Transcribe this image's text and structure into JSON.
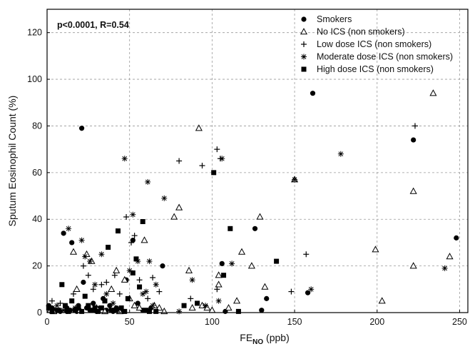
{
  "chart_data": {
    "type": "scatter",
    "annotation": "p<0.0001, R=0.54",
    "xlabel_main": "FE",
    "xlabel_sub": "NO",
    "xlabel_unit": " (ppb)",
    "ylabel": "Sputum Eosinophil Count (%)",
    "xlim": [
      0,
      255
    ],
    "ylim": [
      0,
      130
    ],
    "x_ticks": [
      0,
      50,
      100,
      150,
      200,
      250
    ],
    "y_ticks": [
      0,
      20,
      40,
      60,
      80,
      100,
      120
    ],
    "grid": true,
    "legend_position": "top-right",
    "series": [
      {
        "name": "Smokers",
        "marker": "circle",
        "points": [
          [
            1,
            3
          ],
          [
            3,
            2
          ],
          [
            5,
            1
          ],
          [
            8,
            0.5
          ],
          [
            10,
            34
          ],
          [
            12,
            2
          ],
          [
            14,
            1
          ],
          [
            15,
            30
          ],
          [
            17,
            1.5
          ],
          [
            19,
            3
          ],
          [
            21,
            79
          ],
          [
            22,
            13
          ],
          [
            24,
            2
          ],
          [
            26,
            1
          ],
          [
            28,
            4
          ],
          [
            30,
            0.5
          ],
          [
            32,
            2
          ],
          [
            34,
            6
          ],
          [
            36,
            1
          ],
          [
            38,
            3
          ],
          [
            40,
            0.5
          ],
          [
            42,
            2
          ],
          [
            44,
            1
          ],
          [
            46,
            0.5
          ],
          [
            48,
            14
          ],
          [
            52,
            31
          ],
          [
            55,
            4
          ],
          [
            58,
            1
          ],
          [
            63,
            2
          ],
          [
            70,
            20
          ],
          [
            106,
            21
          ],
          [
            108,
            0.5
          ],
          [
            126,
            36
          ],
          [
            130,
            1
          ],
          [
            133,
            6
          ],
          [
            158,
            8.5
          ],
          [
            161,
            94
          ],
          [
            222,
            74
          ],
          [
            248,
            32
          ],
          [
            5,
            0.5
          ],
          [
            12,
            0.5
          ],
          [
            18,
            0.5
          ]
        ]
      },
      {
        "name": "No ICS (non smokers)",
        "marker": "triangle",
        "points": [
          [
            2,
            1
          ],
          [
            4,
            0.5
          ],
          [
            16,
            26
          ],
          [
            18,
            10
          ],
          [
            20,
            1
          ],
          [
            24,
            25
          ],
          [
            27,
            22
          ],
          [
            30,
            2
          ],
          [
            35,
            0.5
          ],
          [
            39,
            10
          ],
          [
            42,
            18
          ],
          [
            44,
            0.5
          ],
          [
            47,
            14
          ],
          [
            50,
            6
          ],
          [
            53,
            3
          ],
          [
            56,
            2
          ],
          [
            59,
            31
          ],
          [
            65,
            3
          ],
          [
            68,
            2
          ],
          [
            71,
            0.5
          ],
          [
            77,
            41
          ],
          [
            80,
            45
          ],
          [
            86,
            18
          ],
          [
            88,
            2
          ],
          [
            92,
            79
          ],
          [
            94,
            3
          ],
          [
            97,
            2
          ],
          [
            100,
            1
          ],
          [
            104,
            12
          ],
          [
            104,
            16
          ],
          [
            110,
            2
          ],
          [
            115,
            5
          ],
          [
            118,
            26
          ],
          [
            124,
            20
          ],
          [
            129,
            41
          ],
          [
            132,
            11
          ],
          [
            150,
            57
          ],
          [
            199,
            27
          ],
          [
            203,
            5
          ],
          [
            222,
            20
          ],
          [
            222,
            52
          ],
          [
            234,
            94
          ],
          [
            244,
            24
          ]
        ]
      },
      {
        "name": "Low dose ICS (non smokers)",
        "marker": "plus",
        "points": [
          [
            3,
            5
          ],
          [
            8,
            4
          ],
          [
            16,
            8
          ],
          [
            22,
            20
          ],
          [
            25,
            16
          ],
          [
            28,
            10
          ],
          [
            33,
            12
          ],
          [
            36,
            13
          ],
          [
            41,
            16
          ],
          [
            44,
            8
          ],
          [
            48,
            41
          ],
          [
            51,
            30
          ],
          [
            53,
            33
          ],
          [
            56,
            14
          ],
          [
            61,
            6
          ],
          [
            64,
            15
          ],
          [
            68,
            9
          ],
          [
            80,
            65
          ],
          [
            87,
            6
          ],
          [
            94,
            63
          ],
          [
            103,
            10
          ],
          [
            103,
            70
          ],
          [
            105,
            66
          ],
          [
            148,
            9
          ],
          [
            157,
            25
          ],
          [
            223,
            80
          ]
        ]
      },
      {
        "name": "Moderate dose ICS (non smokers)",
        "marker": "asterisk",
        "points": [
          [
            6,
            3
          ],
          [
            10,
            1
          ],
          [
            13,
            36
          ],
          [
            17,
            2
          ],
          [
            21,
            31
          ],
          [
            23,
            24
          ],
          [
            26,
            22
          ],
          [
            29,
            12
          ],
          [
            33,
            25
          ],
          [
            36,
            8
          ],
          [
            40,
            4
          ],
          [
            43,
            1
          ],
          [
            47,
            66
          ],
          [
            50,
            18
          ],
          [
            52,
            42
          ],
          [
            55,
            22
          ],
          [
            58,
            8
          ],
          [
            60,
            9
          ],
          [
            61,
            56
          ],
          [
            62,
            22
          ],
          [
            64,
            3
          ],
          [
            66,
            12
          ],
          [
            71,
            49
          ],
          [
            80,
            0.5
          ],
          [
            88,
            14
          ],
          [
            96,
            3
          ],
          [
            104,
            5
          ],
          [
            106,
            66
          ],
          [
            112,
            21
          ],
          [
            150,
            57
          ],
          [
            160,
            10
          ],
          [
            178,
            68
          ],
          [
            241,
            19
          ]
        ]
      },
      {
        "name": "High dose ICS (non smokers)",
        "marker": "square",
        "points": [
          [
            1,
            2
          ],
          [
            3,
            0.5
          ],
          [
            7,
            1
          ],
          [
            9,
            12
          ],
          [
            11,
            3
          ],
          [
            13,
            0.5
          ],
          [
            15,
            5
          ],
          [
            17,
            1
          ],
          [
            19,
            2
          ],
          [
            21,
            0.5
          ],
          [
            23,
            7
          ],
          [
            25,
            3
          ],
          [
            27,
            1
          ],
          [
            29,
            2
          ],
          [
            31,
            0.5
          ],
          [
            33,
            2
          ],
          [
            35,
            5
          ],
          [
            37,
            28
          ],
          [
            39,
            1
          ],
          [
            41,
            1
          ],
          [
            43,
            35
          ],
          [
            45,
            2
          ],
          [
            47,
            0.5
          ],
          [
            49,
            6
          ],
          [
            52,
            17
          ],
          [
            54,
            23
          ],
          [
            56,
            11
          ],
          [
            58,
            39
          ],
          [
            60,
            1
          ],
          [
            62,
            0.5
          ],
          [
            66,
            0.5
          ],
          [
            83,
            3
          ],
          [
            91,
            4
          ],
          [
            101,
            60
          ],
          [
            107,
            16
          ],
          [
            111,
            36
          ],
          [
            116,
            0.5
          ],
          [
            139,
            22
          ]
        ]
      }
    ]
  }
}
